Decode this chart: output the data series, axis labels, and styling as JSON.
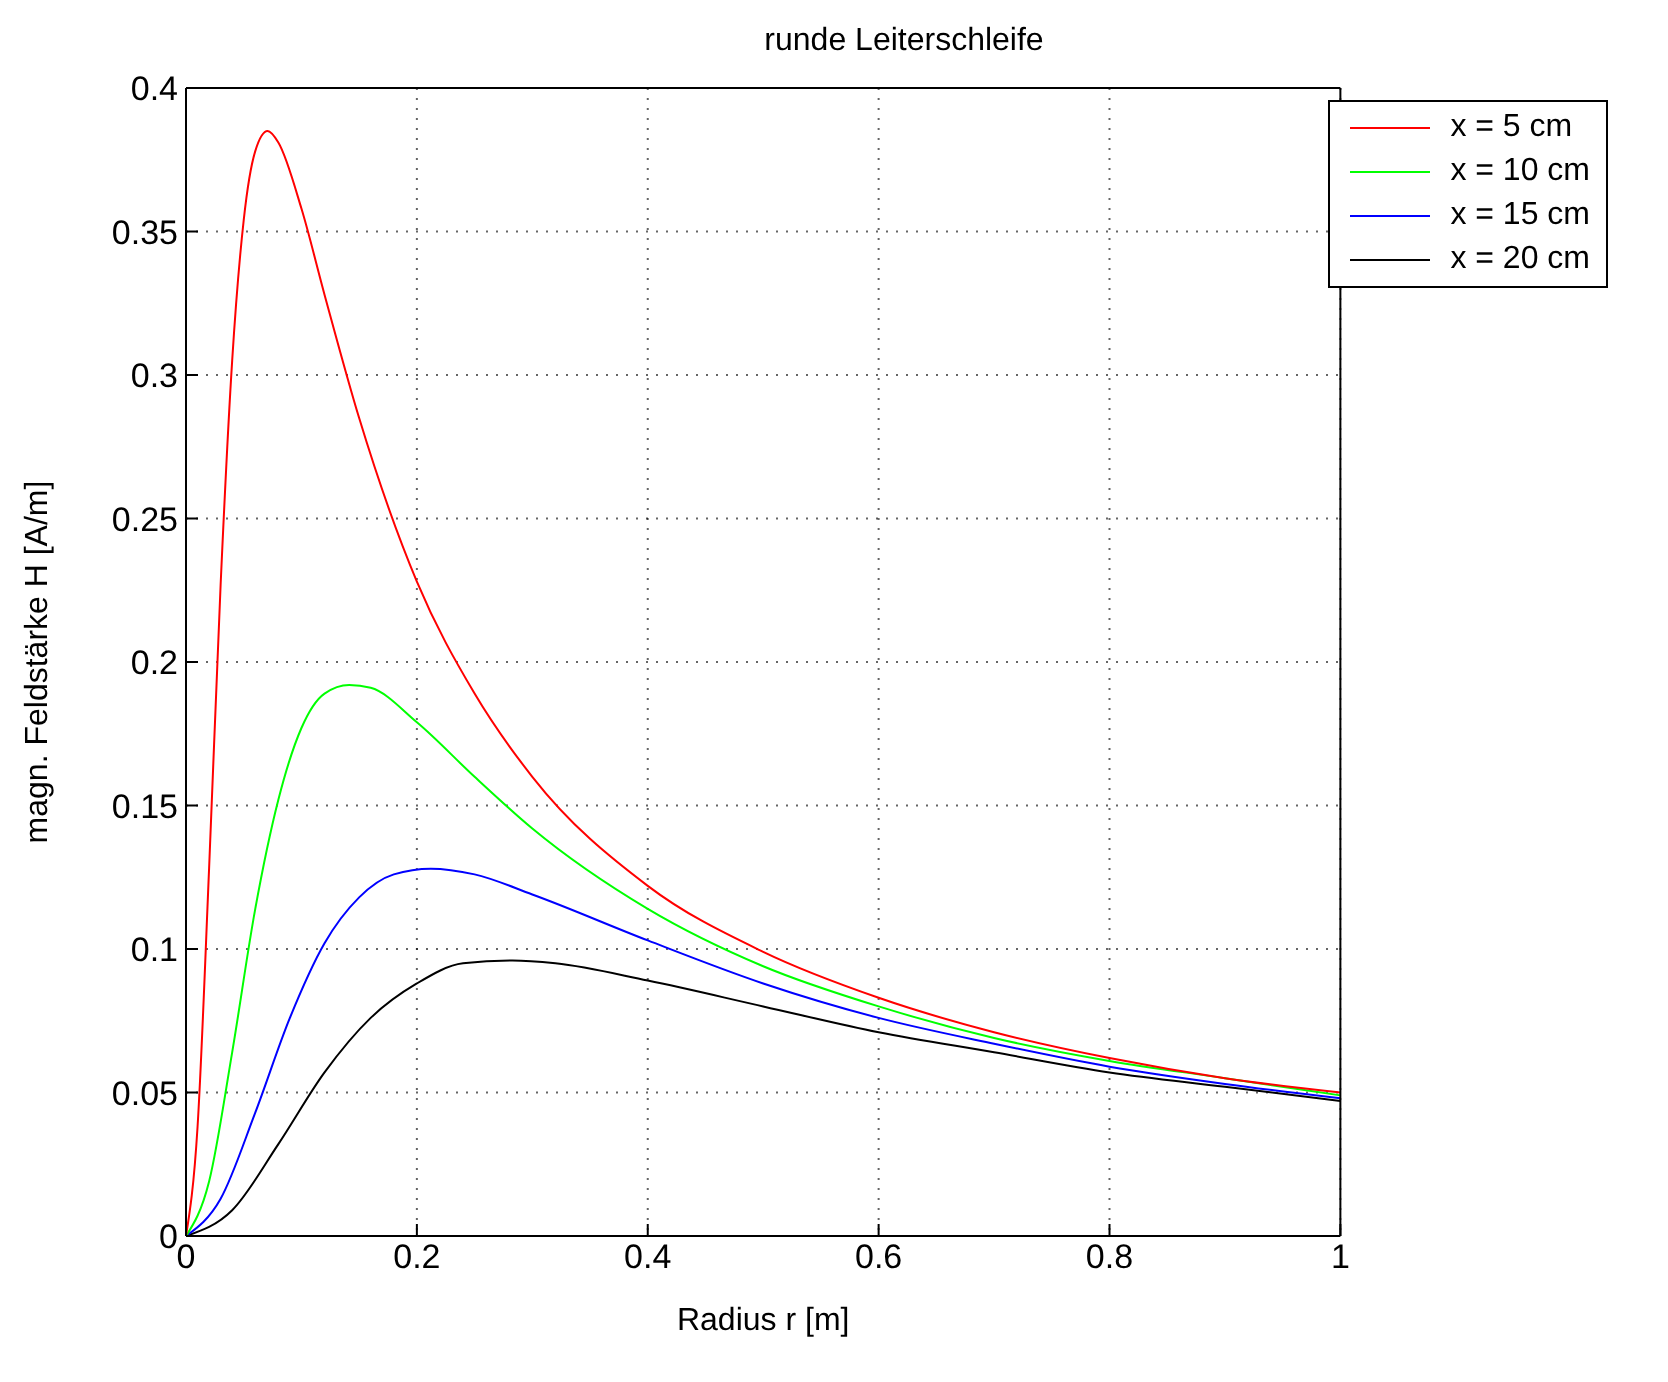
{
  "chart_data": {
    "type": "line",
    "title": "runde Leiterschleife",
    "xlabel": "Radius r [m]",
    "ylabel": "magn. Feldstärke H [A/m]",
    "xlim": [
      0,
      1
    ],
    "xticks": [
      0,
      0.2,
      0.4,
      0.6,
      0.8,
      1
    ],
    "ylim": [
      0,
      0.4
    ],
    "yticks": [
      0,
      0.05,
      0.1,
      0.15,
      0.2,
      0.25,
      0.3,
      0.35,
      0.4
    ],
    "grid": true,
    "legend": "top right",
    "line_style": "solid",
    "marker": "none",
    "series": [
      {
        "name": "x = 5 cm",
        "color": "#ff0000",
        "x": [
          0,
          0.01,
          0.02,
          0.03,
          0.04,
          0.05,
          0.06,
          0.0707,
          0.08,
          0.1,
          0.12,
          0.15,
          0.2,
          0.25,
          0.3,
          0.4,
          0.5,
          0.6,
          0.7,
          0.8,
          0.9,
          1
        ],
        "values": [
          0,
          0.038,
          0.128,
          0.227,
          0.305,
          0.354,
          0.378,
          0.385,
          0.381,
          0.358,
          0.328,
          0.285,
          0.228,
          0.189,
          0.16,
          0.122,
          0.099,
          0.083,
          0.071,
          0.062,
          0.055,
          0.05
        ]
      },
      {
        "name": "x = 10 cm",
        "color": "#00ff00",
        "x": [
          0,
          0.02,
          0.04,
          0.06,
          0.08,
          0.1,
          0.12,
          0.1414,
          0.16,
          0.2,
          0.25,
          0.3,
          0.4,
          0.5,
          0.6,
          0.7,
          0.8,
          0.9,
          1
        ],
        "values": [
          0,
          0.019,
          0.064,
          0.114,
          0.152,
          0.177,
          0.189,
          0.192,
          0.191,
          0.179,
          0.16,
          0.142,
          0.114,
          0.094,
          0.08,
          0.069,
          0.061,
          0.055,
          0.049
        ]
      },
      {
        "name": "x = 15 cm",
        "color": "#0000ff",
        "x": [
          0,
          0.03,
          0.06,
          0.09,
          0.12,
          0.15,
          0.18,
          0.2121,
          0.25,
          0.3,
          0.4,
          0.5,
          0.6,
          0.7,
          0.8,
          0.9,
          1
        ],
        "values": [
          0,
          0.013,
          0.043,
          0.076,
          0.102,
          0.118,
          0.126,
          0.128,
          0.126,
          0.119,
          0.103,
          0.088,
          0.076,
          0.067,
          0.059,
          0.053,
          0.048
        ]
      },
      {
        "name": "x = 20 cm",
        "color": "#000000",
        "x": [
          0,
          0.04,
          0.08,
          0.12,
          0.16,
          0.2,
          0.24,
          0.2828,
          0.32,
          0.4,
          0.5,
          0.6,
          0.7,
          0.8,
          0.9,
          1
        ],
        "values": [
          0,
          0.009,
          0.032,
          0.057,
          0.076,
          0.088,
          0.095,
          0.096,
          0.095,
          0.089,
          0.08,
          0.071,
          0.064,
          0.057,
          0.052,
          0.047
        ]
      }
    ]
  }
}
